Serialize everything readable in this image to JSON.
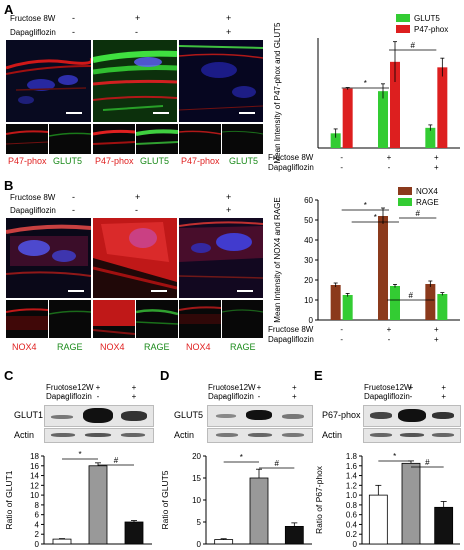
{
  "panels": {
    "A": {
      "letter": "A",
      "conditions": [
        {
          "label": "Fructose 8W",
          "marks": [
            "-",
            "+",
            "+"
          ]
        },
        {
          "label": "Dapagliflozin",
          "marks": [
            "-",
            "-",
            "+"
          ]
        }
      ],
      "thumb_labels": [
        "P47-phox",
        "GLUT5",
        "P47-phox",
        "GLUT5",
        "P47-phox",
        "GLUT5"
      ],
      "thumb_colors": [
        "#e02020",
        "#1a8a1a",
        "#e02020",
        "#1a8a1a",
        "#e02020",
        "#1a8a1a"
      ]
    },
    "B": {
      "letter": "B",
      "conditions": [
        {
          "label": "Fructose 8W",
          "marks": [
            "-",
            "+",
            "+"
          ]
        },
        {
          "label": "Dapagliflozin",
          "marks": [
            "-",
            "-",
            "+"
          ]
        }
      ],
      "thumb_labels": [
        "NOX4",
        "RAGE",
        "NOX4",
        "RAGE",
        "NOX4",
        "RAGE"
      ],
      "thumb_colors": [
        "#e02020",
        "#1a8a1a",
        "#e02020",
        "#1a8a1a",
        "#e02020",
        "#1a8a1a"
      ]
    },
    "C": {
      "letter": "C",
      "protein": "GLUT1",
      "loading": "Actin"
    },
    "D": {
      "letter": "D",
      "protein": "GLUT5",
      "loading": "Actin"
    },
    "E": {
      "letter": "E",
      "protein": "P67-phox",
      "loading": "Actin"
    }
  },
  "colors": {
    "green": "#33cc33",
    "red": "#dd1f1f",
    "brown": "#8b3a1c",
    "gray": "#999999",
    "black": "#111111",
    "white": "#ffffff"
  },
  "chart_data": [
    {
      "id": "A",
      "type": "bar",
      "ylabel": "Mean Intensity of P47-phox and GLUT5",
      "ylim": [
        0,
        30
      ],
      "yticks": [],
      "legend_position": "top-right",
      "conditions": [
        {
          "label": "Fructose 8W",
          "marks": [
            "-",
            "+",
            "+"
          ]
        },
        {
          "label": "Dapagliflozin",
          "marks": [
            "-",
            "-",
            "+"
          ]
        }
      ],
      "series": [
        {
          "name": "GLUT5",
          "color": "#33cc33",
          "values": [
            4,
            15.5,
            5.5
          ],
          "errors": [
            1.2,
            2.0,
            0.8
          ]
        },
        {
          "name": "P47-phox",
          "color": "#dd1f1f",
          "values": [
            16.2,
            23.5,
            22
          ],
          "errors": [
            0.3,
            5.5,
            2.5
          ]
        }
      ],
      "significance": [
        {
          "from": 0,
          "to": 1,
          "label": "*"
        },
        {
          "from": 1,
          "to": 2,
          "label": "#"
        }
      ]
    },
    {
      "id": "B",
      "type": "bar",
      "ylabel": "Mean Intensity of NOX4 and RAGE",
      "ylim": [
        0,
        60
      ],
      "yticks": [
        0,
        10,
        20,
        30,
        40,
        50,
        60
      ],
      "legend_position": "top-right",
      "conditions": [
        {
          "label": "Fructose 8W",
          "marks": [
            "-",
            "+",
            "+"
          ]
        },
        {
          "label": "Dapagliflozin",
          "marks": [
            "-",
            "-",
            "+"
          ]
        }
      ],
      "series": [
        {
          "name": "NOX4",
          "color": "#8b3a1c",
          "values": [
            17.5,
            52,
            18
          ],
          "errors": [
            1.0,
            4.0,
            1.5
          ]
        },
        {
          "name": "RAGE",
          "color": "#33cc33",
          "values": [
            12.5,
            17,
            13
          ],
          "errors": [
            0.8,
            0.8,
            0.7
          ]
        }
      ],
      "significance": [
        {
          "from": 0,
          "to": 1,
          "label": "*"
        },
        {
          "from": 0,
          "to": 1,
          "label": "*"
        },
        {
          "from": 1,
          "to": 2,
          "label": "#"
        },
        {
          "from": 1,
          "to": 2,
          "label": "#"
        }
      ]
    },
    {
      "id": "C",
      "type": "bar",
      "ylabel": "Ratio of GLUT1",
      "ylim": [
        0,
        18
      ],
      "yticks": [
        0,
        2,
        4,
        6,
        8,
        10,
        12,
        14,
        16,
        18
      ],
      "conditions": [
        {
          "label": "Fructose12W",
          "marks": [
            "-",
            "+",
            "+"
          ]
        },
        {
          "label": "Dapagliflozin",
          "marks": [
            "-",
            "-",
            "+"
          ]
        }
      ],
      "values": [
        1,
        16,
        4.5
      ],
      "errors": [
        0.1,
        0.6,
        0.3
      ],
      "colors": [
        "#ffffff",
        "#999999",
        "#111111"
      ],
      "significance": [
        {
          "from": 0,
          "to": 1,
          "label": "*"
        },
        {
          "from": 1,
          "to": 2,
          "label": "#"
        }
      ]
    },
    {
      "id": "D",
      "type": "bar",
      "ylabel": "Ratio of GLUT5",
      "ylim": [
        0,
        20
      ],
      "yticks": [
        0,
        5,
        10,
        15,
        20
      ],
      "conditions": [
        {
          "label": "Fructose12W",
          "marks": [
            "-",
            "+",
            "+"
          ]
        },
        {
          "label": "Dapagliflozin",
          "marks": [
            "-",
            "-",
            "+"
          ]
        }
      ],
      "values": [
        1,
        15,
        4
      ],
      "errors": [
        0.2,
        2.0,
        0.8
      ],
      "colors": [
        "#ffffff",
        "#999999",
        "#111111"
      ],
      "significance": [
        {
          "from": 0,
          "to": 1,
          "label": "*"
        },
        {
          "from": 1,
          "to": 2,
          "label": "#"
        }
      ]
    },
    {
      "id": "E",
      "type": "bar",
      "ylabel": "Ratio of P67-phox",
      "ylim": [
        0,
        1.8
      ],
      "yticks": [
        0,
        0.2,
        0.4,
        0.6,
        0.8,
        1.0,
        1.2,
        1.4,
        1.6,
        1.8
      ],
      "ytick_labels": [
        "0",
        "0.2",
        "0.4",
        "0.6",
        "0.8",
        "1.0",
        "1.2",
        "1.4",
        "1.6",
        "1.8"
      ],
      "conditions": [
        {
          "label": "Fructose12W",
          "marks": [
            "-",
            "+",
            "+"
          ]
        },
        {
          "label": "Dapagliflozin",
          "marks": [
            "-",
            "-",
            "+"
          ]
        }
      ],
      "values": [
        1.0,
        1.65,
        0.75
      ],
      "errors": [
        0.2,
        0.05,
        0.12
      ],
      "colors": [
        "#ffffff",
        "#999999",
        "#111111"
      ],
      "significance": [
        {
          "from": 0,
          "to": 1,
          "label": "*"
        },
        {
          "from": 1,
          "to": 2,
          "label": "#"
        }
      ]
    }
  ]
}
